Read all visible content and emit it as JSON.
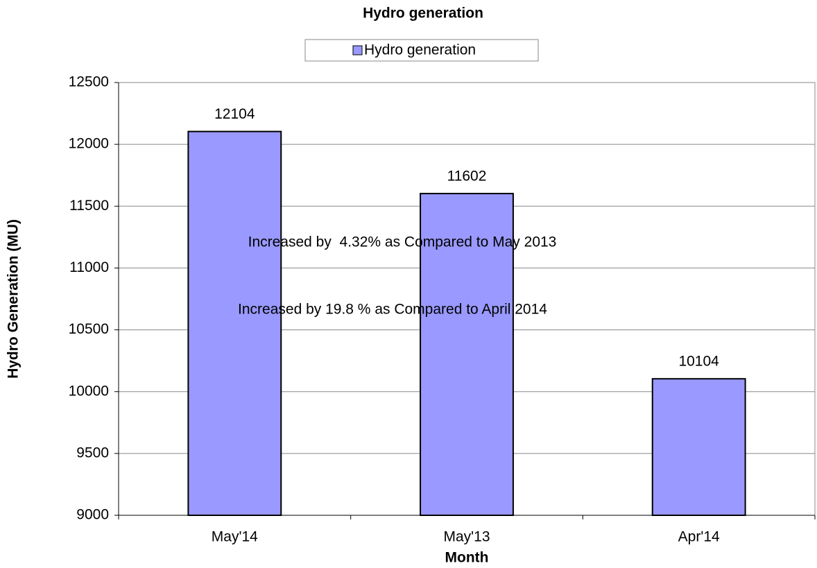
{
  "chart_data": {
    "type": "bar",
    "title": "Hydro generation",
    "categories": [
      "May'14",
      "May'13",
      "Apr'14"
    ],
    "series": [
      {
        "name": "Hydro generation",
        "color": "#9999ff",
        "values": [
          12104,
          11602,
          10104
        ]
      }
    ],
    "x_label": "Month",
    "y_label": "Hydro Generation (MU)",
    "ylim": [
      9000,
      12500
    ],
    "yticks": [
      9000,
      9500,
      10000,
      10500,
      11000,
      11500,
      12000,
      12500
    ],
    "grid": true,
    "legend": "top",
    "annotations": [
      "Increased by  4.32% as Compared to May 2013",
      "Increased by 19.8 % as Compared to April 2014"
    ]
  }
}
